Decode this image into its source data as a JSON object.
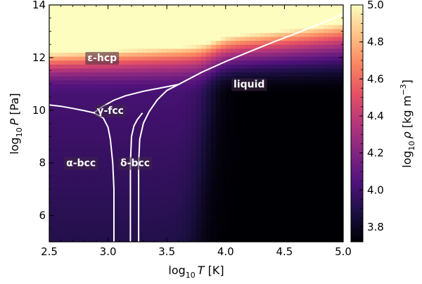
{
  "chart_data": {
    "type": "heatmap",
    "title": "",
    "xlabel": {
      "main": "log",
      "sub": "10",
      "var": "T",
      "unit": " [K]"
    },
    "ylabel": {
      "main": "log",
      "sub": "10",
      "var": "P",
      "unit": " [Pa]"
    },
    "colorbar_label": {
      "main": "log",
      "sub": "10",
      "var": "ρ",
      "unit": " [kg m",
      "sup": "−3",
      "close": "]"
    },
    "xlim": [
      2.5,
      5.0
    ],
    "ylim": [
      5.0,
      14.0
    ],
    "clim": [
      3.72,
      5.0
    ],
    "x_ticks": [
      "2.5",
      "3.0",
      "3.5",
      "4.0",
      "4.5",
      "5.0"
    ],
    "y_ticks": [
      "6",
      "8",
      "10",
      "12",
      "14"
    ],
    "colorbar_ticks": [
      "3.8",
      "4.0",
      "4.2",
      "4.4",
      "4.6",
      "4.8",
      "5.0"
    ],
    "colormap": [
      "#000004",
      "#1c1044",
      "#4f127b",
      "#812581",
      "#b5367a",
      "#e55064",
      "#fb8761",
      "#fec287",
      "#fcfdbf"
    ],
    "phase_regions": [
      {
        "name": "ε-hcp",
        "x": 2.95,
        "y": 12.0
      },
      {
        "name": "γ-fcc",
        "x": 3.02,
        "y": 10.0
      },
      {
        "name": "α-bcc",
        "x": 2.77,
        "y": 8.0
      },
      {
        "name": "δ-bcc",
        "x": 3.23,
        "y": 8.0
      },
      {
        "name": "liquid",
        "x": 4.2,
        "y": 11.0
      }
    ],
    "phase_boundaries": [
      {
        "name": "alpha-gamma",
        "points": [
          [
            2.5,
            10.2
          ],
          [
            2.6,
            10.15
          ],
          [
            2.7,
            10.07
          ],
          [
            2.8,
            9.98
          ],
          [
            2.88,
            9.9
          ]
        ]
      },
      {
        "name": "gamma-epsilon",
        "points": [
          [
            2.88,
            9.9
          ],
          [
            2.95,
            10.13
          ],
          [
            3.05,
            10.38
          ],
          [
            3.15,
            10.55
          ],
          [
            3.3,
            10.72
          ],
          [
            3.45,
            10.85
          ],
          [
            3.6,
            10.98
          ]
        ]
      },
      {
        "name": "alpha-gamma-lower",
        "points": [
          [
            2.88,
            9.9
          ],
          [
            2.96,
            9.7
          ],
          [
            3.0,
            9.35
          ],
          [
            3.02,
            8.9
          ],
          [
            3.04,
            8.0
          ],
          [
            3.05,
            7.0
          ],
          [
            3.05,
            5.0
          ]
        ]
      },
      {
        "name": "gamma-delta",
        "points": [
          [
            3.19,
            5.0
          ],
          [
            3.19,
            7.0
          ],
          [
            3.19,
            8.0
          ],
          [
            3.2,
            9.0
          ],
          [
            3.22,
            9.4
          ],
          [
            3.25,
            9.65
          ],
          [
            3.29,
            9.88
          ]
        ]
      },
      {
        "name": "delta-liquid",
        "points": [
          [
            3.26,
            5.0
          ],
          [
            3.26,
            7.0
          ],
          [
            3.26,
            8.0
          ],
          [
            3.27,
            8.9
          ],
          [
            3.3,
            9.5
          ],
          [
            3.35,
            9.95
          ],
          [
            3.42,
            10.4
          ],
          [
            3.5,
            10.75
          ],
          [
            3.6,
            10.98
          ]
        ]
      },
      {
        "name": "melting-curve",
        "points": [
          [
            3.6,
            10.98
          ],
          [
            3.8,
            11.45
          ],
          [
            4.0,
            11.85
          ],
          [
            4.2,
            12.22
          ],
          [
            4.4,
            12.58
          ],
          [
            4.6,
            12.92
          ],
          [
            4.8,
            13.28
          ],
          [
            4.95,
            13.55
          ],
          [
            5.0,
            13.68
          ]
        ]
      }
    ]
  }
}
